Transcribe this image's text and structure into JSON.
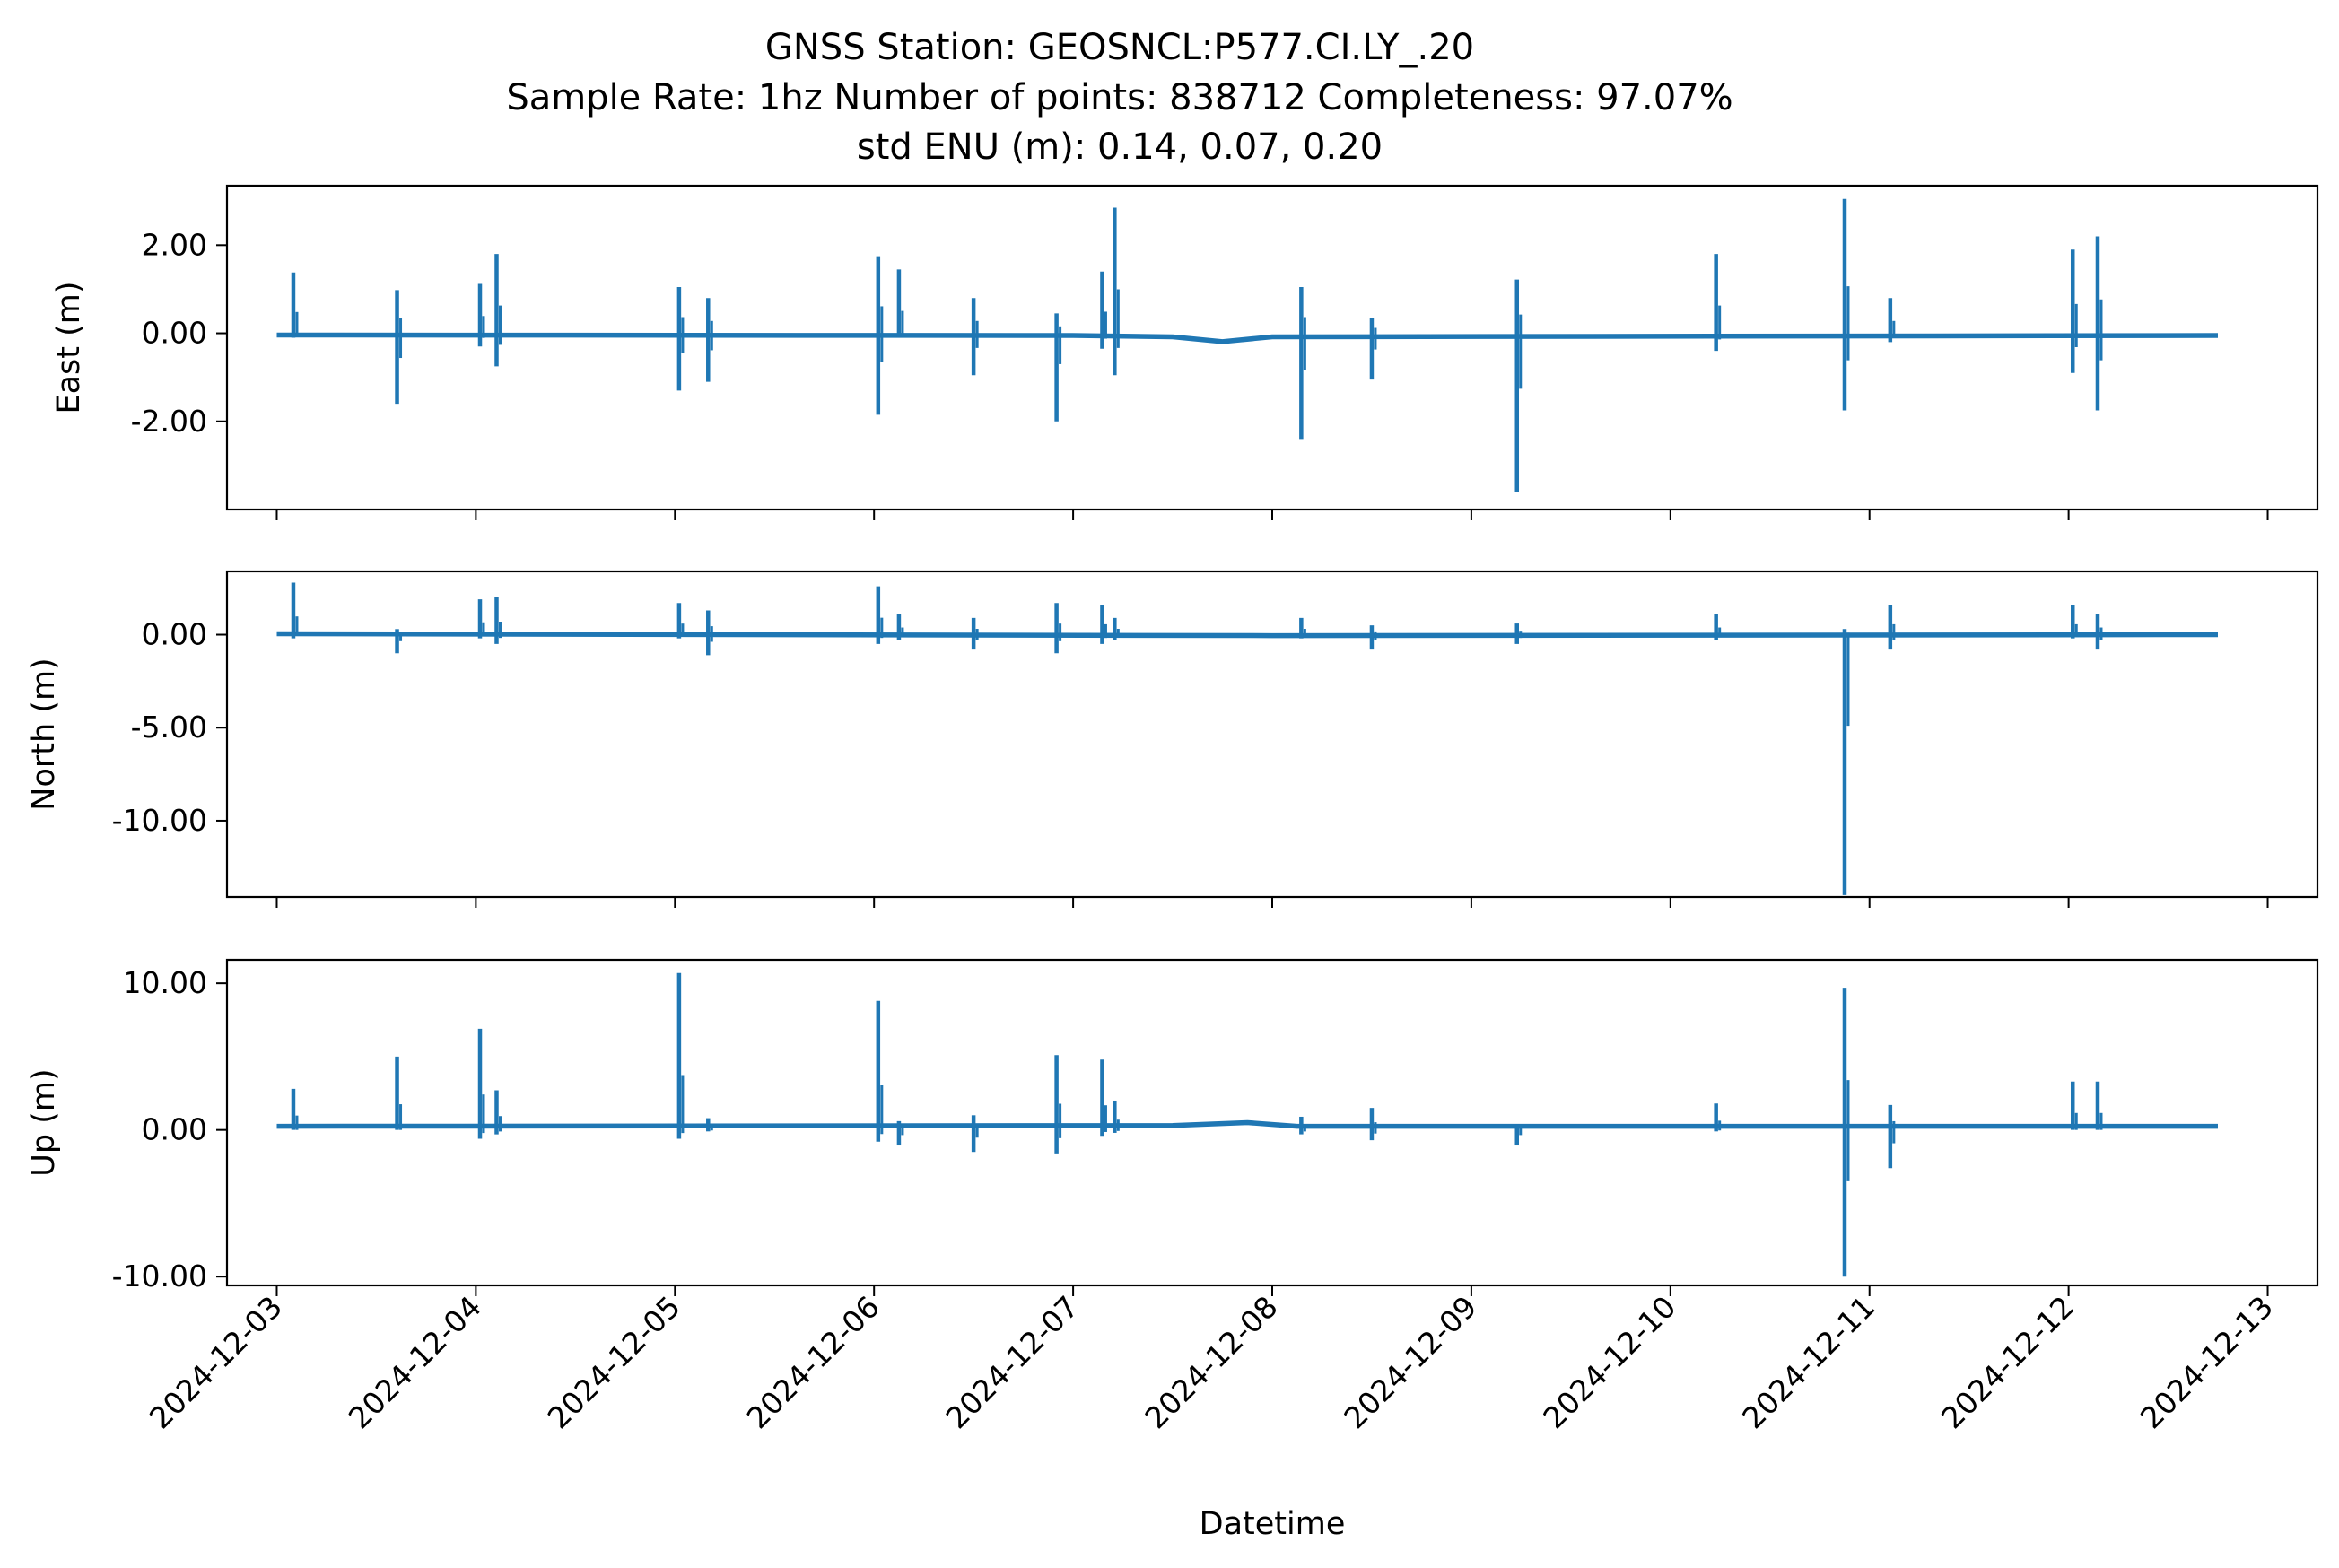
{
  "title_lines": [
    "GNSS Station: GEOSNCL:P577.CI.LY_.20",
    "Sample Rate: 1hz   Number of points: 838712    Completeness:  97.07%",
    "std ENU (m):  0.14, 0.07, 0.20"
  ],
  "colors": {
    "series": "#1f77b4",
    "axes": "#000000",
    "background": "#ffffff"
  },
  "chart_data": {
    "type": "line",
    "xlabel": "Datetime",
    "x_ticks": [
      "2024-12-03",
      "2024-12-04",
      "2024-12-05",
      "2024-12-06",
      "2024-12-07",
      "2024-12-08",
      "2024-12-09",
      "2024-12-10",
      "2024-12-11",
      "2024-12-12",
      "2024-12-13"
    ],
    "xlim": [
      "2024-12-02T18:00",
      "2024-12-13T06:00"
    ],
    "x_start": "2024-12-03T00:00",
    "x_end": "2024-12-12T18:00",
    "grid": false,
    "legend": "none",
    "panels": [
      {
        "key": "east",
        "ylabel": "East (m)",
        "ylim": [
          -4.0,
          3.35
        ],
        "yticks": [
          2.0,
          0.0,
          -2.0
        ],
        "ytick_labels": [
          "2.00",
          "0.00",
          "-2.00"
        ],
        "baseline": [
          [
            "2024-12-03T00:00",
            -0.04
          ],
          [
            "2024-12-07T00:00",
            -0.05
          ],
          [
            "2024-12-07T12:00",
            -0.08
          ],
          [
            "2024-12-07T18:00",
            -0.19
          ],
          [
            "2024-12-08T00:00",
            -0.08
          ],
          [
            "2024-12-12T18:00",
            -0.05
          ]
        ],
        "spikes": [
          {
            "t": "2024-12-03T02:00",
            "min": -0.1,
            "max": 1.38
          },
          {
            "t": "2024-12-03T14:30",
            "min": -1.6,
            "max": 0.98
          },
          {
            "t": "2024-12-04T00:30",
            "min": -0.3,
            "max": 1.12
          },
          {
            "t": "2024-12-04T02:30",
            "min": -0.75,
            "max": 1.8
          },
          {
            "t": "2024-12-05T00:30",
            "min": -1.3,
            "max": 1.05
          },
          {
            "t": "2024-12-05T04:00",
            "min": -1.1,
            "max": 0.8
          },
          {
            "t": "2024-12-06T00:30",
            "min": -1.85,
            "max": 1.75
          },
          {
            "t": "2024-12-06T03:00",
            "min": -0.1,
            "max": 1.45
          },
          {
            "t": "2024-12-06T12:00",
            "min": -0.95,
            "max": 0.8
          },
          {
            "t": "2024-12-06T22:00",
            "min": -2.0,
            "max": 0.45
          },
          {
            "t": "2024-12-07T03:30",
            "min": -0.35,
            "max": 1.4
          },
          {
            "t": "2024-12-07T05:00",
            "min": -0.95,
            "max": 2.85
          },
          {
            "t": "2024-12-08T03:30",
            "min": -2.4,
            "max": 1.05
          },
          {
            "t": "2024-12-08T12:00",
            "min": -1.05,
            "max": 0.35
          },
          {
            "t": "2024-12-09T05:30",
            "min": -3.6,
            "max": 1.22
          },
          {
            "t": "2024-12-10T05:30",
            "min": -0.4,
            "max": 1.8
          },
          {
            "t": "2024-12-10T21:00",
            "min": -1.75,
            "max": 3.05
          },
          {
            "t": "2024-12-11T02:30",
            "min": -0.2,
            "max": 0.8
          },
          {
            "t": "2024-12-12T00:30",
            "min": -0.9,
            "max": 1.9
          },
          {
            "t": "2024-12-12T03:30",
            "min": -1.75,
            "max": 2.2
          }
        ]
      },
      {
        "key": "north",
        "ylabel": "North (m)",
        "ylim": [
          -14.1,
          3.4
        ],
        "yticks": [
          0.0,
          -5.0,
          -10.0
        ],
        "ytick_labels": [
          "0.00",
          "-5.00",
          "-10.00"
        ],
        "baseline": [
          [
            "2024-12-03T00:00",
            0.05
          ],
          [
            "2024-12-08T00:00",
            -0.05
          ],
          [
            "2024-12-12T18:00",
            0.0
          ]
        ],
        "spikes": [
          {
            "t": "2024-12-03T02:00",
            "min": -0.2,
            "max": 2.8
          },
          {
            "t": "2024-12-03T14:30",
            "min": -1.0,
            "max": 0.3
          },
          {
            "t": "2024-12-04T00:30",
            "min": -0.2,
            "max": 1.9
          },
          {
            "t": "2024-12-04T02:30",
            "min": -0.5,
            "max": 2.0
          },
          {
            "t": "2024-12-05T00:30",
            "min": -0.2,
            "max": 1.7
          },
          {
            "t": "2024-12-05T04:00",
            "min": -1.1,
            "max": 1.3
          },
          {
            "t": "2024-12-06T00:30",
            "min": -0.5,
            "max": 2.6
          },
          {
            "t": "2024-12-06T03:00",
            "min": -0.3,
            "max": 1.1
          },
          {
            "t": "2024-12-06T12:00",
            "min": -0.8,
            "max": 0.9
          },
          {
            "t": "2024-12-06T22:00",
            "min": -1.0,
            "max": 1.7
          },
          {
            "t": "2024-12-07T03:30",
            "min": -0.5,
            "max": 1.6
          },
          {
            "t": "2024-12-07T05:00",
            "min": -0.3,
            "max": 0.9
          },
          {
            "t": "2024-12-08T03:30",
            "min": -0.2,
            "max": 0.9
          },
          {
            "t": "2024-12-08T12:00",
            "min": -0.8,
            "max": 0.5
          },
          {
            "t": "2024-12-09T05:30",
            "min": -0.5,
            "max": 0.6
          },
          {
            "t": "2024-12-10T05:30",
            "min": -0.3,
            "max": 1.1
          },
          {
            "t": "2024-12-10T21:00",
            "min": -14.0,
            "max": 0.3
          },
          {
            "t": "2024-12-11T02:30",
            "min": -0.8,
            "max": 1.6
          },
          {
            "t": "2024-12-12T00:30",
            "min": -0.2,
            "max": 1.6
          },
          {
            "t": "2024-12-12T03:30",
            "min": -0.8,
            "max": 1.1
          }
        ]
      },
      {
        "key": "up",
        "ylabel": "Up (m)",
        "ylim": [
          -10.6,
          11.6
        ],
        "yticks": [
          10.0,
          0.0,
          -10.0
        ],
        "ytick_labels": [
          "10.00",
          "0.00",
          "-10.00"
        ],
        "baseline": [
          [
            "2024-12-03T00:00",
            0.25
          ],
          [
            "2024-12-07T12:00",
            0.3
          ],
          [
            "2024-12-07T21:00",
            0.5
          ],
          [
            "2024-12-08T03:00",
            0.25
          ],
          [
            "2024-12-12T18:00",
            0.25
          ]
        ],
        "spikes": [
          {
            "t": "2024-12-03T02:00",
            "min": 0.0,
            "max": 2.8
          },
          {
            "t": "2024-12-03T14:30",
            "min": 0.0,
            "max": 5.0
          },
          {
            "t": "2024-12-04T00:30",
            "min": -0.6,
            "max": 6.9
          },
          {
            "t": "2024-12-04T02:30",
            "min": -0.3,
            "max": 2.7
          },
          {
            "t": "2024-12-05T00:30",
            "min": -0.6,
            "max": 10.7
          },
          {
            "t": "2024-12-05T04:00",
            "min": -0.1,
            "max": 0.8
          },
          {
            "t": "2024-12-06T00:30",
            "min": -0.8,
            "max": 8.8
          },
          {
            "t": "2024-12-06T03:00",
            "min": -1.0,
            "max": 0.6
          },
          {
            "t": "2024-12-06T12:00",
            "min": -1.5,
            "max": 1.0
          },
          {
            "t": "2024-12-06T22:00",
            "min": -1.6,
            "max": 5.1
          },
          {
            "t": "2024-12-07T03:30",
            "min": -0.4,
            "max": 4.8
          },
          {
            "t": "2024-12-07T05:00",
            "min": -0.2,
            "max": 2.0
          },
          {
            "t": "2024-12-08T03:30",
            "min": -0.3,
            "max": 0.9
          },
          {
            "t": "2024-12-08T12:00",
            "min": -0.7,
            "max": 1.5
          },
          {
            "t": "2024-12-09T05:30",
            "min": -1.0,
            "max": 0.4
          },
          {
            "t": "2024-12-10T05:30",
            "min": -0.1,
            "max": 1.8
          },
          {
            "t": "2024-12-10T21:00",
            "min": -10.0,
            "max": 9.7
          },
          {
            "t": "2024-12-11T02:30",
            "min": -2.6,
            "max": 1.7
          },
          {
            "t": "2024-12-12T00:30",
            "min": 0.0,
            "max": 3.3
          },
          {
            "t": "2024-12-12T03:30",
            "min": 0.0,
            "max": 3.3
          }
        ]
      }
    ]
  }
}
